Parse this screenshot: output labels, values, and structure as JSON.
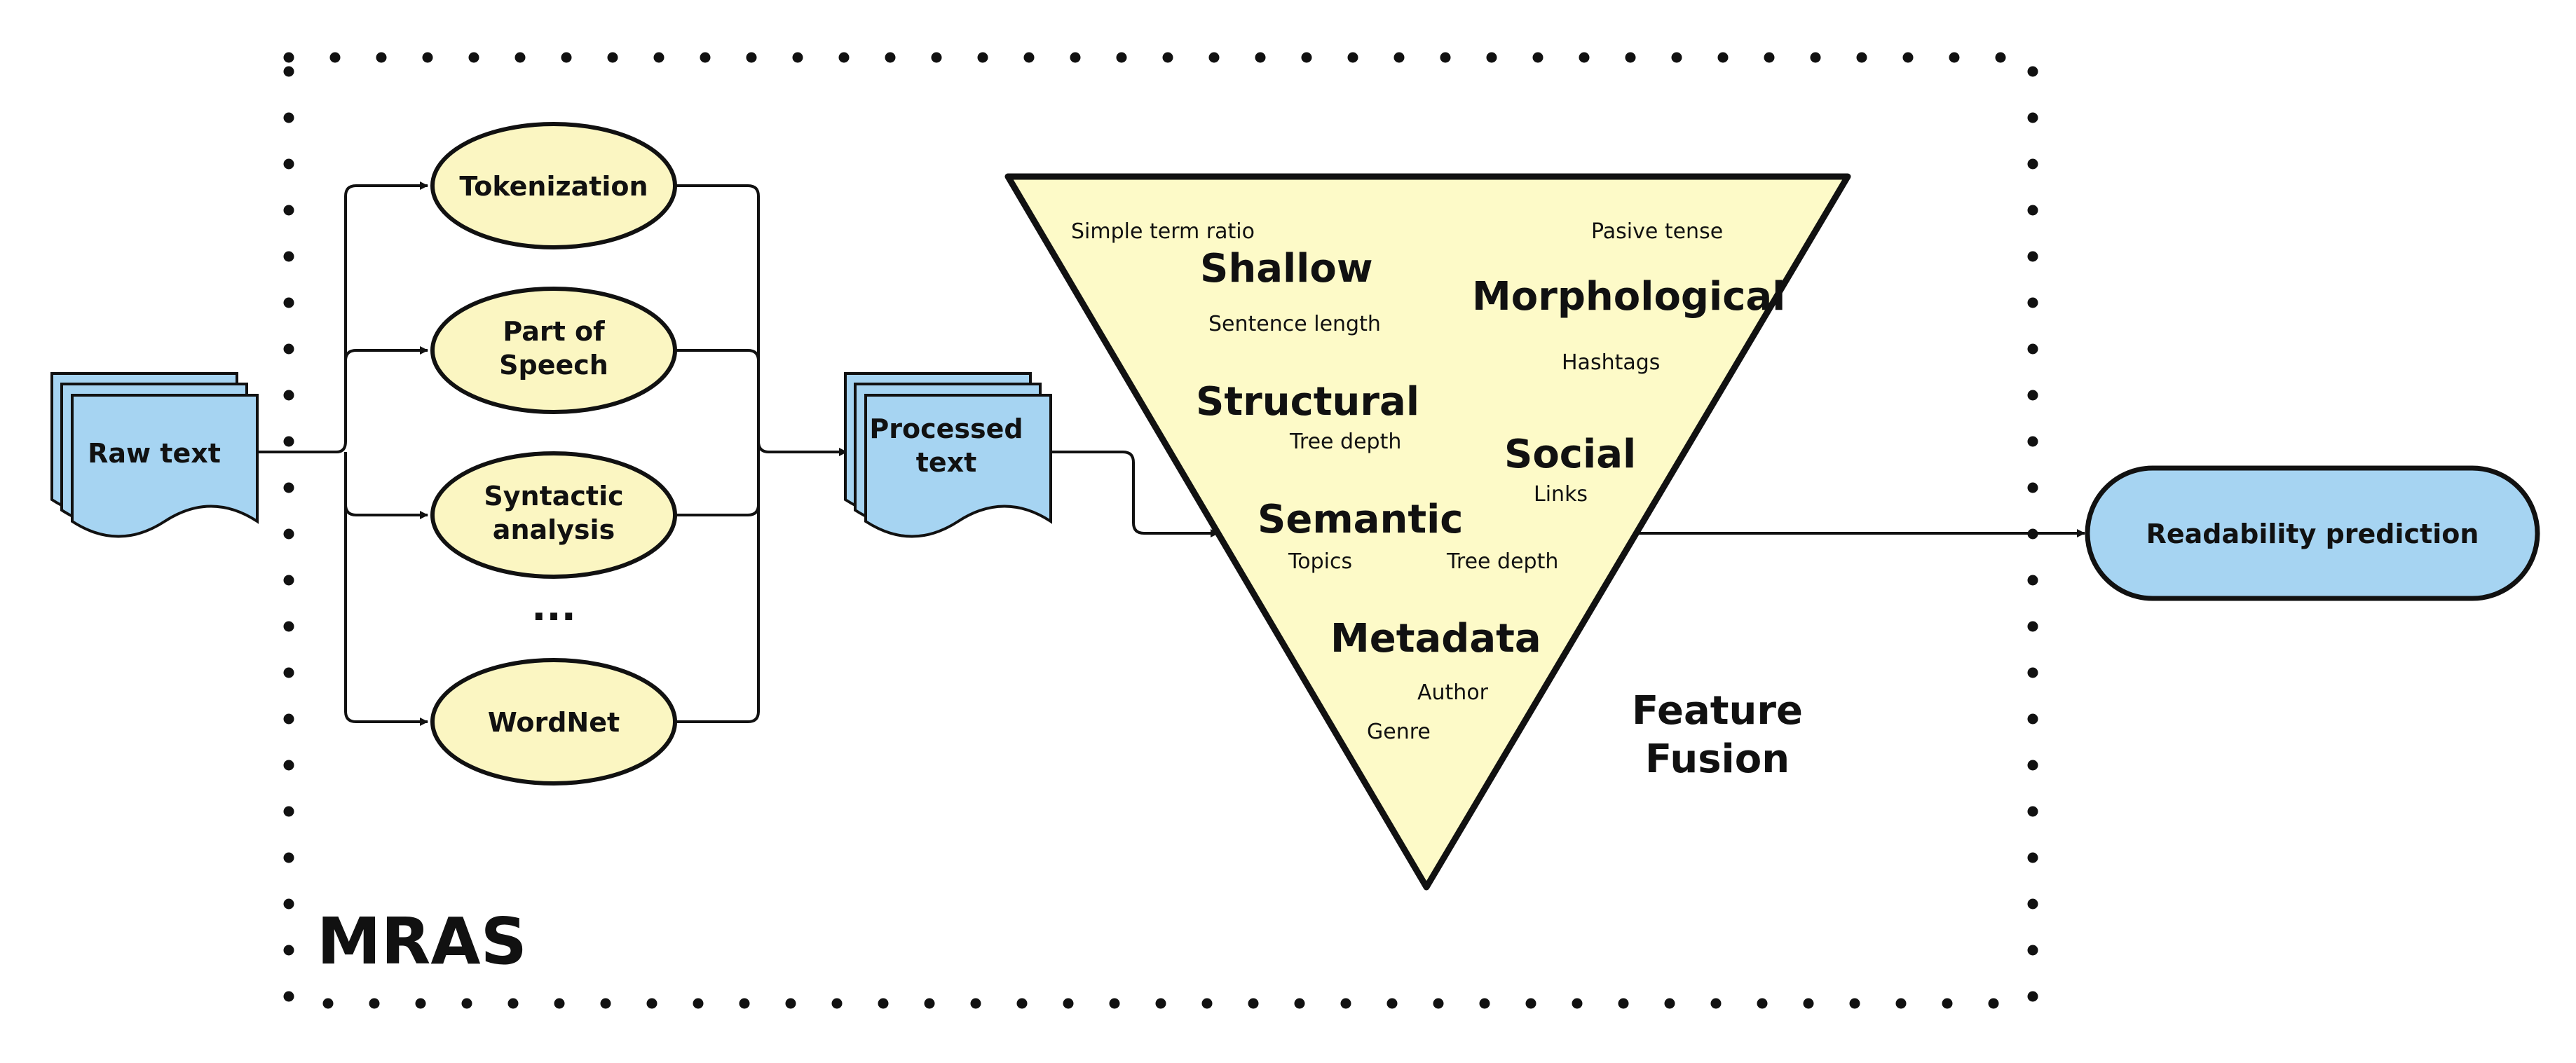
{
  "colors": {
    "document_fill": "#a6d4f2",
    "process_fill": "#fbf6c2",
    "triangle_fill": "#fdfac8",
    "output_fill": "#a6d4f2",
    "stroke": "#111111"
  },
  "system": {
    "label": "MRAS"
  },
  "input": {
    "label": "Raw text"
  },
  "processing_steps": [
    {
      "lines": [
        "Tokenization"
      ]
    },
    {
      "lines": [
        "Part of",
        "Speech"
      ]
    },
    {
      "lines": [
        "Syntactic",
        "analysis"
      ]
    },
    {
      "lines": [
        "WordNet"
      ]
    }
  ],
  "ellipsis": "...",
  "processed": {
    "lines": [
      "Processed",
      "text"
    ]
  },
  "fusion": {
    "caption_lines": [
      "Feature",
      "Fusion"
    ],
    "categories": [
      "Shallow",
      "Morphological",
      "Structural",
      "Social",
      "Semantic",
      "Metadata"
    ],
    "features": [
      "Simple term ratio",
      "Pasive tense",
      "Sentence length",
      "Hashtags",
      "Tree depth",
      "Links",
      "Topics",
      "Tree depth",
      "Author",
      "Genre"
    ]
  },
  "output": {
    "label": "Readability prediction"
  }
}
